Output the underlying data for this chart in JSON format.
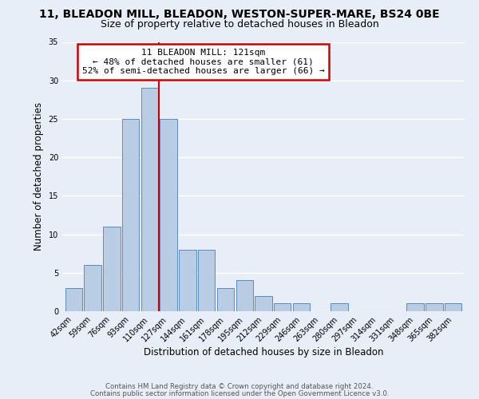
{
  "title_line1": "11, BLEADON MILL, BLEADON, WESTON-SUPER-MARE, BS24 0BE",
  "title_line2": "Size of property relative to detached houses in Bleadon",
  "xlabel": "Distribution of detached houses by size in Bleadon",
  "ylabel": "Number of detached properties",
  "bar_color": "#b8cce4",
  "bar_edge_color": "#5a8ac6",
  "background_color": "#e8eef7",
  "grid_color": "#ffffff",
  "bin_labels": [
    "42sqm",
    "59sqm",
    "76sqm",
    "93sqm",
    "110sqm",
    "127sqm",
    "144sqm",
    "161sqm",
    "178sqm",
    "195sqm",
    "212sqm",
    "229sqm",
    "246sqm",
    "263sqm",
    "280sqm",
    "297sqm",
    "314sqm",
    "331sqm",
    "348sqm",
    "365sqm",
    "382sqm"
  ],
  "bin_values": [
    3,
    6,
    11,
    25,
    29,
    25,
    8,
    8,
    3,
    4,
    2,
    1,
    1,
    0,
    1,
    0,
    0,
    0,
    1,
    1,
    1
  ],
  "ylim": [
    0,
    35
  ],
  "yticks": [
    0,
    5,
    10,
    15,
    20,
    25,
    30,
    35
  ],
  "vline_color": "#cc0000",
  "vline_x": 4.5,
  "annotation_title": "11 BLEADON MILL: 121sqm",
  "annotation_line2": "← 48% of detached houses are smaller (61)",
  "annotation_line3": "52% of semi-detached houses are larger (66) →",
  "annotation_box_color": "#ffffff",
  "annotation_box_edge": "#cc0000",
  "footer_line1": "Contains HM Land Registry data © Crown copyright and database right 2024.",
  "footer_line2": "Contains public sector information licensed under the Open Government Licence v3.0."
}
